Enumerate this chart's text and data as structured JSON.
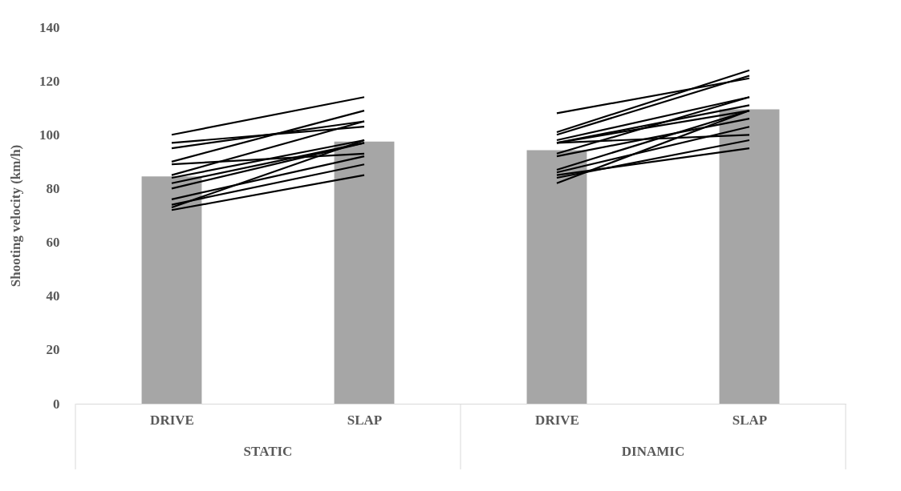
{
  "chart_data": {
    "type": "bar",
    "ylabel": "Shooting velocity (km/h)",
    "categories": [
      "DRIVE",
      "SLAP",
      "DRIVE",
      "SLAP"
    ],
    "annotations": [
      "STATIC",
      "DINAMIC"
    ],
    "ylim": [
      0,
      140
    ],
    "yticks": [
      0,
      20,
      40,
      60,
      80,
      100,
      120,
      140
    ],
    "grid": false,
    "marker": "none",
    "series": [
      {
        "color": "#a6a6a6",
        "values": [
          84.5,
          97.5,
          94.3,
          109.5
        ]
      },
      {
        "type": "line",
        "color": "#000000",
        "values": [
          100,
          114,
          null,
          null
        ]
      },
      {
        "type": "line",
        "color": "#000000",
        "values": [
          97,
          103,
          null,
          null
        ]
      },
      {
        "type": "line",
        "color": "#000000",
        "values": [
          95,
          105,
          null,
          null
        ]
      },
      {
        "type": "line",
        "color": "#000000",
        "values": [
          90,
          109,
          null,
          null
        ]
      },
      {
        "type": "line",
        "color": "#000000",
        "values": [
          89,
          93,
          null,
          null
        ]
      },
      {
        "type": "line",
        "color": "#000000",
        "values": [
          85,
          105,
          null,
          null
        ]
      },
      {
        "type": "line",
        "color": "#000000",
        "values": [
          84,
          98,
          null,
          null
        ]
      },
      {
        "type": "line",
        "color": "#000000",
        "values": [
          82,
          97,
          null,
          null
        ]
      },
      {
        "type": "line",
        "color": "#000000",
        "values": [
          80,
          97,
          null,
          null
        ]
      },
      {
        "type": "line",
        "color": "#000000",
        "values": [
          76,
          92,
          null,
          null
        ]
      },
      {
        "type": "line",
        "color": "#000000",
        "values": [
          74,
          89,
          null,
          null
        ]
      },
      {
        "type": "line",
        "color": "#000000",
        "values": [
          73,
          98,
          null,
          null
        ]
      },
      {
        "type": "line",
        "color": "#000000",
        "values": [
          72,
          85,
          null,
          null
        ]
      },
      {
        "type": "line",
        "color": "#000000",
        "values": [
          null,
          null,
          108,
          121
        ]
      },
      {
        "type": "line",
        "color": "#000000",
        "values": [
          null,
          null,
          101,
          124
        ]
      },
      {
        "type": "line",
        "color": "#000000",
        "values": [
          null,
          null,
          100,
          122
        ]
      },
      {
        "type": "line",
        "color": "#000000",
        "values": [
          null,
          null,
          98,
          114
        ]
      },
      {
        "type": "line",
        "color": "#000000",
        "values": [
          null,
          null,
          97,
          109
        ]
      },
      {
        "type": "line",
        "color": "#000000",
        "values": [
          null,
          null,
          97,
          111
        ]
      },
      {
        "type": "line",
        "color": "#000000",
        "values": [
          null,
          null,
          97,
          100
        ]
      },
      {
        "type": "line",
        "color": "#000000",
        "values": [
          null,
          null,
          93,
          114
        ]
      },
      {
        "type": "line",
        "color": "#000000",
        "values": [
          null,
          null,
          92,
          106
        ]
      },
      {
        "type": "line",
        "color": "#000000",
        "values": [
          null,
          null,
          87,
          109
        ]
      },
      {
        "type": "line",
        "color": "#000000",
        "values": [
          null,
          null,
          86,
          103
        ]
      },
      {
        "type": "line",
        "color": "#000000",
        "values": [
          null,
          null,
          85,
          95
        ]
      },
      {
        "type": "line",
        "color": "#000000",
        "values": [
          null,
          null,
          84,
          98
        ]
      },
      {
        "type": "line",
        "color": "#000000",
        "values": [
          null,
          null,
          82,
          109
        ]
      }
    ]
  }
}
